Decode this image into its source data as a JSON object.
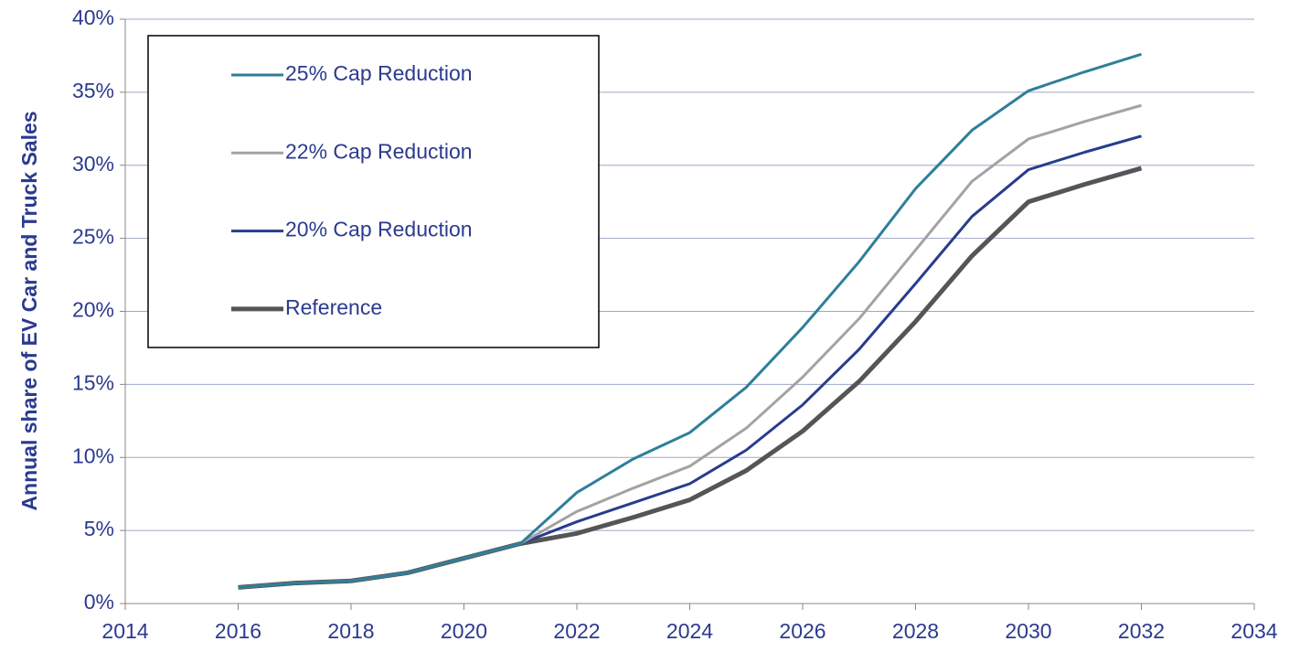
{
  "chart_data": {
    "type": "line",
    "y_label": "Annual share of EV Car and Truck Sales",
    "x": [
      2016,
      2017,
      2018,
      2019,
      2020,
      2021,
      2022,
      2023,
      2024,
      2025,
      2026,
      2027,
      2028,
      2029,
      2030,
      2031,
      2032
    ],
    "series": [
      {
        "name": "25% Cap Reduction",
        "color": "#2e7f9a",
        "width": 3,
        "values": [
          1.1,
          1.4,
          1.55,
          2.1,
          3.1,
          4.1,
          7.6,
          9.9,
          11.7,
          14.8,
          18.9,
          23.4,
          28.4,
          32.4,
          35.1,
          36.4,
          37.6
        ]
      },
      {
        "name": "22% Cap Reduction",
        "color": "#a3a3a3",
        "width": 3,
        "values": [
          1.1,
          1.4,
          1.55,
          2.1,
          3.1,
          4.1,
          6.3,
          7.9,
          9.4,
          12.0,
          15.5,
          19.5,
          24.2,
          28.9,
          31.8,
          33.0,
          34.1
        ]
      },
      {
        "name": "20% Cap Reduction",
        "color": "#283c8e",
        "width": 3,
        "values": [
          1.1,
          1.4,
          1.55,
          2.1,
          3.1,
          4.1,
          5.6,
          6.9,
          8.2,
          10.5,
          13.6,
          17.4,
          21.9,
          26.5,
          29.7,
          30.9,
          32.0
        ]
      },
      {
        "name": "Reference",
        "color": "#555555",
        "width": 5,
        "values": [
          1.1,
          1.4,
          1.55,
          2.1,
          3.1,
          4.1,
          4.8,
          5.9,
          7.1,
          9.1,
          11.8,
          15.2,
          19.3,
          23.8,
          27.5,
          28.7,
          29.8
        ]
      }
    ],
    "xlim": [
      2014,
      2034
    ],
    "xticks": [
      2014,
      2016,
      2018,
      2020,
      2022,
      2024,
      2026,
      2028,
      2030,
      2032,
      2034
    ],
    "ylim": [
      0,
      40
    ],
    "yticks": [
      {
        "value": 0,
        "label": "0%"
      },
      {
        "value": 5,
        "label": "5%"
      },
      {
        "value": 10,
        "label": "10%"
      },
      {
        "value": 15,
        "label": "15%"
      },
      {
        "value": 20,
        "label": "20%"
      },
      {
        "value": 25,
        "label": "25%"
      },
      {
        "value": 30,
        "label": "30%"
      },
      {
        "value": 35,
        "label": "35%"
      },
      {
        "value": 40,
        "label": "40%"
      }
    ],
    "grid": true
  }
}
